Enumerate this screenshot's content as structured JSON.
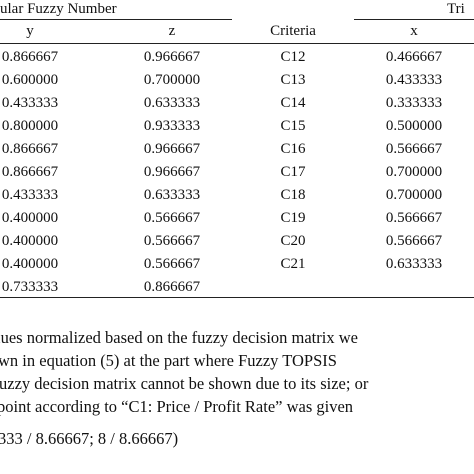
{
  "table": {
    "group_header_left": "ular Fuzzy Number",
    "group_header_right": "Tri",
    "columns": {
      "y": "y",
      "z": "z",
      "criteria": "Criteria",
      "x": "x"
    },
    "rows": [
      {
        "y": "0.866667",
        "z": "0.966667",
        "criteria": "C12",
        "x": "0.466667"
      },
      {
        "y": "0.600000",
        "z": "0.700000",
        "criteria": "C13",
        "x": "0.433333"
      },
      {
        "y": "0.433333",
        "z": "0.633333",
        "criteria": "C14",
        "x": "0.333333"
      },
      {
        "y": "0.800000",
        "z": "0.933333",
        "criteria": "C15",
        "x": "0.500000"
      },
      {
        "y": "0.866667",
        "z": "0.966667",
        "criteria": "C16",
        "x": "0.566667"
      },
      {
        "y": "0.866667",
        "z": "0.966667",
        "criteria": "C17",
        "x": "0.700000"
      },
      {
        "y": "0.433333",
        "z": "0.633333",
        "criteria": "C18",
        "x": "0.700000"
      },
      {
        "y": "0.400000",
        "z": "0.566667",
        "criteria": "C19",
        "x": "0.566667"
      },
      {
        "y": "0.400000",
        "z": "0.566667",
        "criteria": "C20",
        "x": "0.566667"
      },
      {
        "y": "0.400000",
        "z": "0.566667",
        "criteria": "C21",
        "x": "0.633333"
      },
      {
        "y": "0.733333",
        "z": "0.866667",
        "criteria": "",
        "x": ""
      }
    ]
  },
  "paragraph": {
    "line1": "lues normalized based on the fuzzy decision matrix we",
    "line2": "wn in equation (5) at the part where Fuzzy TOPSIS",
    "line3": "uzzy decision matrix cannot be shown due to its size; or",
    "line4": "point according to “C1: Price / Profit Rate” was given",
    "formula": "333 / 8.66667; 8 / 8.66667)"
  }
}
